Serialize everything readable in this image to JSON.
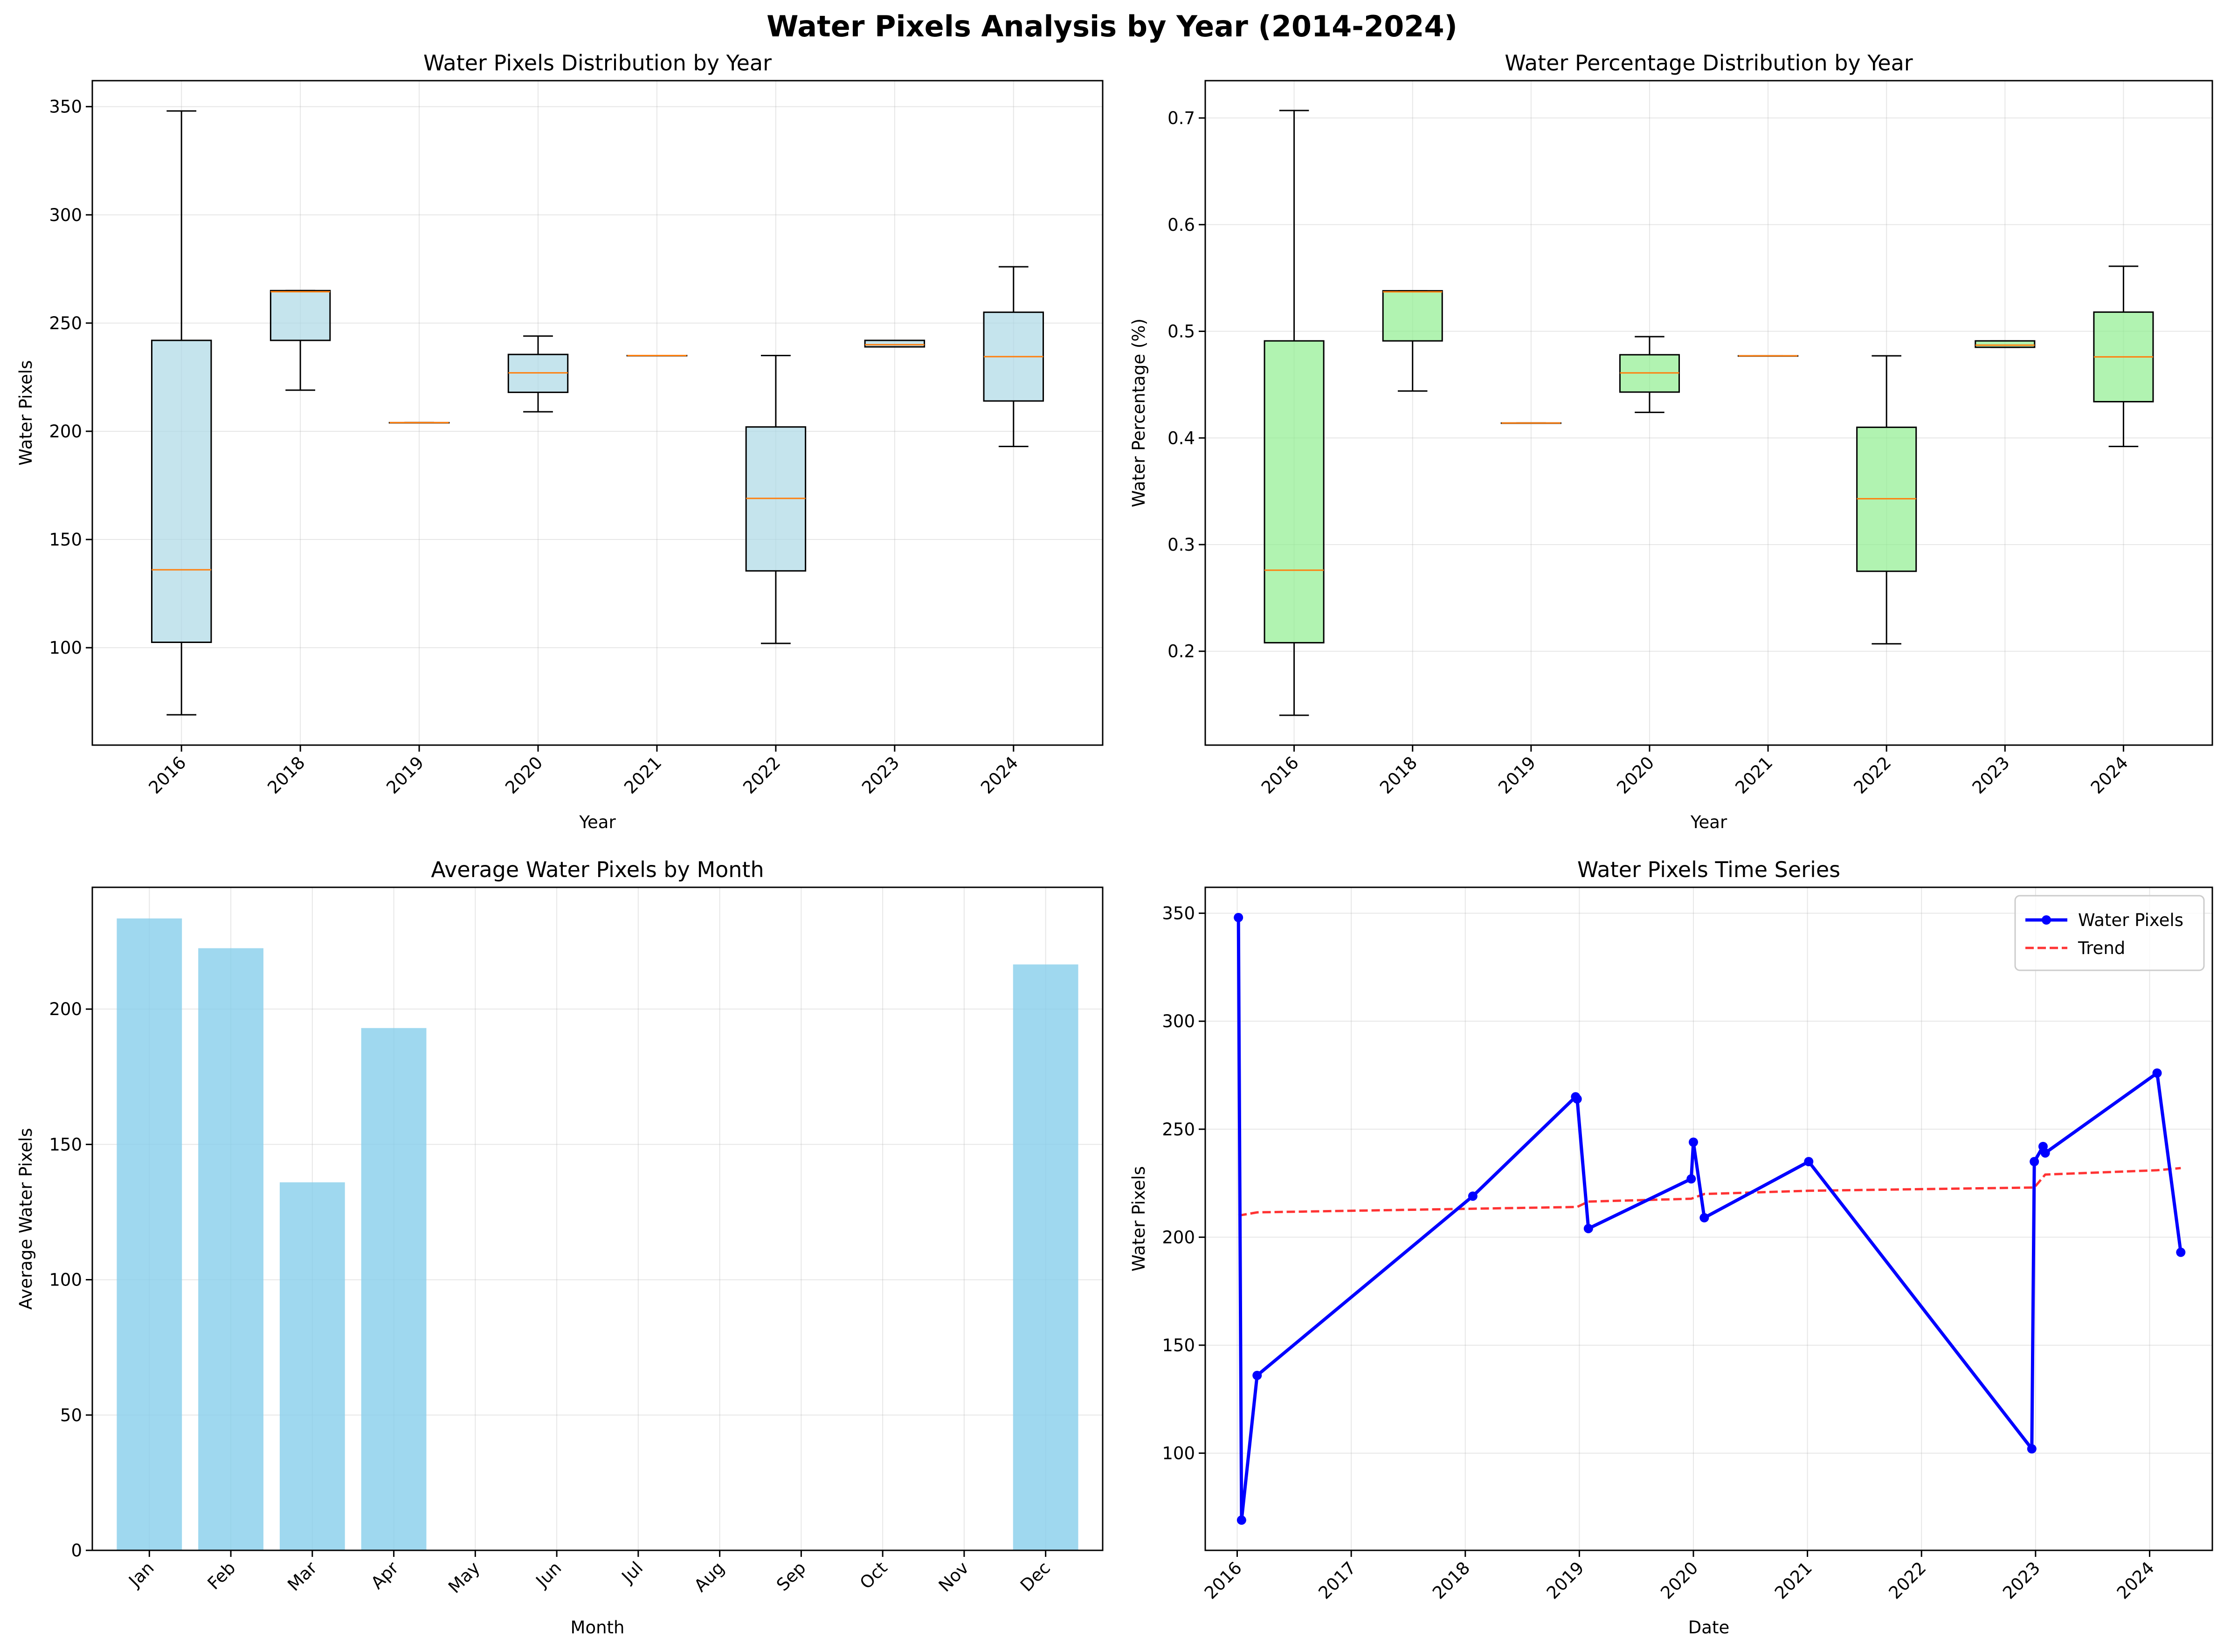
{
  "title": "Water Pixels Analysis by Year (2014-2024)",
  "colors": {
    "box_blue": "#add8e6",
    "box_green": "#90ee90",
    "median": "#ff7f0e",
    "bar": "#87ceeb",
    "line": "#0000ff",
    "trend": "#ff0000",
    "grid": "#b0b0b0"
  },
  "chart_data": [
    {
      "type": "box",
      "title": "Water Pixels Distribution by Year",
      "xlabel": "Year",
      "ylabel": "Water Pixels",
      "ylim": [
        55,
        362
      ],
      "yticks": [
        100,
        150,
        200,
        250,
        300,
        350
      ],
      "categories": [
        "2016",
        "2018",
        "2019",
        "2020",
        "2021",
        "2022",
        "2023",
        "2024"
      ],
      "boxes": [
        {
          "whislo": 69,
          "q1": 102.5,
          "med": 136,
          "q3": 242,
          "whishi": 348
        },
        {
          "whislo": 219,
          "q1": 242,
          "med": 264.5,
          "q3": 265,
          "whishi": 265
        },
        {
          "whislo": 204,
          "q1": 204,
          "med": 204,
          "q3": 204,
          "whishi": 204
        },
        {
          "whislo": 209,
          "q1": 218,
          "med": 227,
          "q3": 235.5,
          "whishi": 244
        },
        {
          "whislo": 235,
          "q1": 235,
          "med": 235,
          "q3": 235,
          "whishi": 235
        },
        {
          "whislo": 102,
          "q1": 135.5,
          "med": 169,
          "q3": 202,
          "whishi": 235
        },
        {
          "whislo": 239,
          "q1": 239,
          "med": 240,
          "q3": 242,
          "whishi": 242
        },
        {
          "whislo": 193,
          "q1": 214,
          "med": 234.5,
          "q3": 255,
          "whishi": 276
        }
      ],
      "grid": true
    },
    {
      "type": "box",
      "title": "Water Percentage Distribution by Year",
      "xlabel": "Year",
      "ylabel": "Water Percentage (%)",
      "ylim": [
        0.112,
        0.735
      ],
      "yticks": [
        0.2,
        0.3,
        0.4,
        0.5,
        0.6,
        0.7
      ],
      "categories": [
        "2016",
        "2018",
        "2019",
        "2020",
        "2021",
        "2022",
        "2023",
        "2024"
      ],
      "boxes": [
        {
          "whislo": 0.14,
          "q1": 0.208,
          "med": 0.276,
          "q3": 0.491,
          "whishi": 0.707
        },
        {
          "whislo": 0.444,
          "q1": 0.491,
          "med": 0.537,
          "q3": 0.538,
          "whishi": 0.538
        },
        {
          "whislo": 0.414,
          "q1": 0.414,
          "med": 0.414,
          "q3": 0.414,
          "whishi": 0.414
        },
        {
          "whislo": 0.424,
          "q1": 0.443,
          "med": 0.461,
          "q3": 0.478,
          "whishi": 0.495
        },
        {
          "whislo": 0.477,
          "q1": 0.477,
          "med": 0.477,
          "q3": 0.477,
          "whishi": 0.477
        },
        {
          "whislo": 0.207,
          "q1": 0.275,
          "med": 0.343,
          "q3": 0.41,
          "whishi": 0.477
        },
        {
          "whislo": 0.485,
          "q1": 0.485,
          "med": 0.487,
          "q3": 0.491,
          "whishi": 0.491
        },
        {
          "whislo": 0.392,
          "q1": 0.434,
          "med": 0.476,
          "q3": 0.518,
          "whishi": 0.561
        }
      ],
      "grid": true
    },
    {
      "type": "bar",
      "title": "Average Water Pixels by Month",
      "xlabel": "Month",
      "ylabel": "Average Water Pixels",
      "ylim": [
        0,
        245
      ],
      "yticks": [
        0,
        50,
        100,
        150,
        200
      ],
      "categories": [
        "Jan",
        "Feb",
        "Mar",
        "Apr",
        "May",
        "Jun",
        "Jul",
        "Aug",
        "Sep",
        "Oct",
        "Nov",
        "Dec"
      ],
      "values": [
        233.5,
        222.5,
        136,
        193,
        0,
        0,
        0,
        0,
        0,
        0,
        0,
        216.5
      ],
      "grid": true
    },
    {
      "type": "line",
      "title": "Water Pixels Time Series",
      "xlabel": "Date",
      "ylabel": "Water Pixels",
      "ylim": [
        55,
        362
      ],
      "yticks": [
        100,
        150,
        200,
        250,
        300,
        350
      ],
      "xticks": [
        "2016",
        "2017",
        "2018",
        "2019",
        "2020",
        "2021",
        "2022",
        "2023",
        "2024"
      ],
      "legend_position": "top-right",
      "series": [
        {
          "name": "Water Pixels",
          "style": "solid-marker",
          "points": [
            [
              "2016-01-05",
              348
            ],
            [
              "2016-01-15",
              69
            ],
            [
              "2016-03-05",
              136
            ],
            [
              "2018-01-25",
              219
            ],
            [
              "2018-12-20",
              265
            ],
            [
              "2018-12-25",
              264
            ],
            [
              "2019-01-30",
              204
            ],
            [
              "2019-12-25",
              227
            ],
            [
              "2020-01-01",
              244
            ],
            [
              "2020-02-05",
              209
            ],
            [
              "2021-01-05",
              235
            ],
            [
              "2022-12-20",
              102
            ],
            [
              "2022-12-28",
              235
            ],
            [
              "2023-01-25",
              242
            ],
            [
              "2023-02-01",
              239
            ],
            [
              "2024-01-25",
              276
            ],
            [
              "2024-04-10",
              193
            ]
          ]
        },
        {
          "name": "Trend",
          "style": "dashed",
          "points": [
            [
              "2016-01-05",
              210
            ],
            [
              "2016-03-05",
              211.5
            ],
            [
              "2018-12-25",
              214
            ],
            [
              "2019-01-30",
              216.5
            ],
            [
              "2019-12-25",
              217.8
            ],
            [
              "2020-02-05",
              220
            ],
            [
              "2021-01-05",
              221.5
            ],
            [
              "2022-12-28",
              223
            ],
            [
              "2023-02-01",
              229
            ],
            [
              "2024-01-25",
              231
            ],
            [
              "2024-04-10",
              232
            ]
          ]
        }
      ],
      "grid": true
    }
  ]
}
